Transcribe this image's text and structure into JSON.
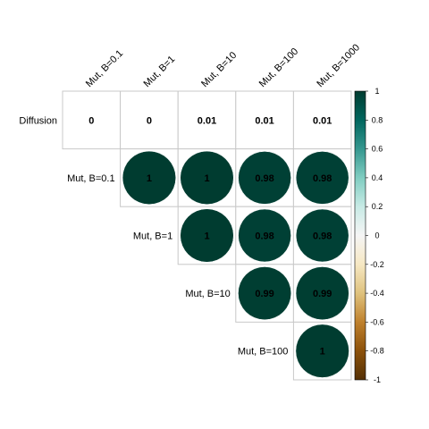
{
  "chart_data": {
    "type": "heatmap",
    "title": "",
    "col_labels": [
      "Mut, B=0.1",
      "Mut, B=1",
      "Mut, B=10",
      "Mut, B=100",
      "Mut, B=1000"
    ],
    "row_labels": [
      "Diffusion",
      "Mut, B=0.1",
      "Mut, B=1",
      "Mut, B=10",
      "Mut, B=100"
    ],
    "cells": [
      {
        "row": 0,
        "col": 0,
        "value": 0,
        "label": "0"
      },
      {
        "row": 0,
        "col": 1,
        "value": 0,
        "label": "0"
      },
      {
        "row": 0,
        "col": 2,
        "value": 0.01,
        "label": "0.01"
      },
      {
        "row": 0,
        "col": 3,
        "value": 0.01,
        "label": "0.01"
      },
      {
        "row": 0,
        "col": 4,
        "value": 0.01,
        "label": "0.01"
      },
      {
        "row": 1,
        "col": 1,
        "value": 1,
        "label": "1"
      },
      {
        "row": 1,
        "col": 2,
        "value": 1,
        "label": "1"
      },
      {
        "row": 1,
        "col": 3,
        "value": 0.98,
        "label": "0.98"
      },
      {
        "row": 1,
        "col": 4,
        "value": 0.98,
        "label": "0.98"
      },
      {
        "row": 2,
        "col": 2,
        "value": 1,
        "label": "1"
      },
      {
        "row": 2,
        "col": 3,
        "value": 0.98,
        "label": "0.98"
      },
      {
        "row": 2,
        "col": 4,
        "value": 0.98,
        "label": "0.98"
      },
      {
        "row": 3,
        "col": 3,
        "value": 0.99,
        "label": "0.99"
      },
      {
        "row": 3,
        "col": 4,
        "value": 0.99,
        "label": "0.99"
      },
      {
        "row": 4,
        "col": 4,
        "value": 1,
        "label": "1"
      }
    ],
    "color_scale": {
      "range": [
        -1,
        1
      ],
      "ticks": [
        "1",
        "0.8",
        "0.6",
        "0.4",
        "0.2",
        "0",
        "-0.2",
        "-0.4",
        "-0.6",
        "-0.8",
        "-1"
      ],
      "colors": [
        "#543005",
        "#8c510a",
        "#bf812d",
        "#dfc27d",
        "#f6e8c3",
        "#f5f5f5",
        "#c7eae5",
        "#80cdc1",
        "#35978f",
        "#01665e",
        "#003c30"
      ]
    },
    "grid": true,
    "legend_position": "right"
  }
}
